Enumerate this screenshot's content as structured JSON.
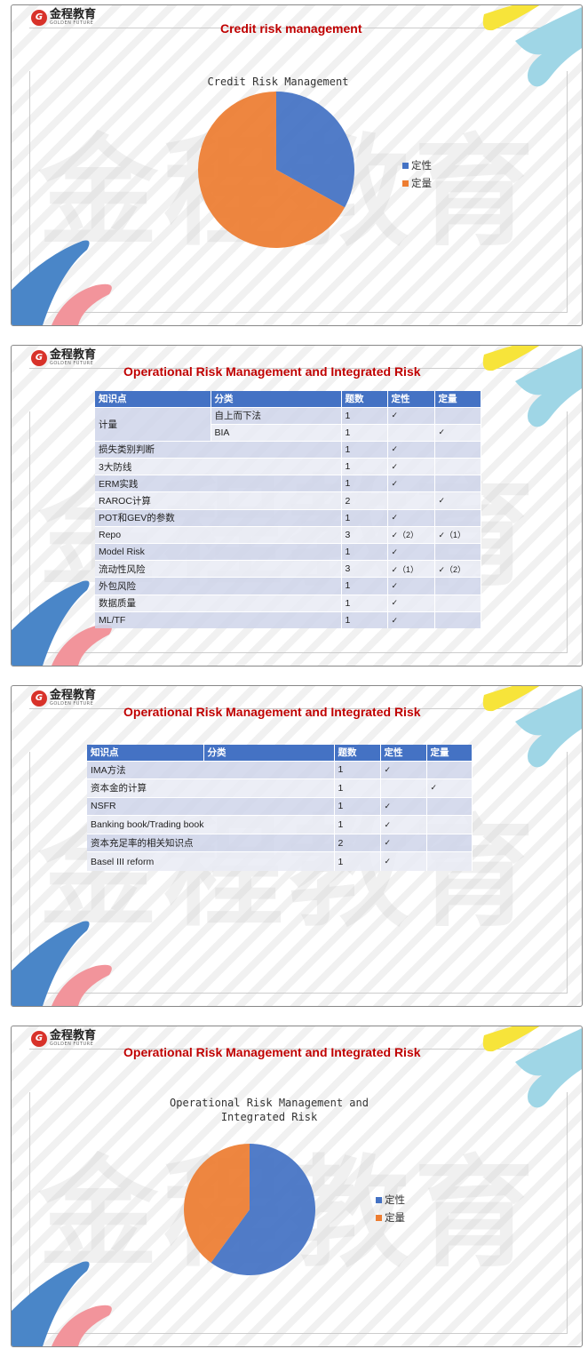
{
  "brand": {
    "logo_cn": "金程教育",
    "logo_en": "GOLDEN FUTURE",
    "watermark": "金程教育"
  },
  "colors": {
    "qualitative": "#4472c4",
    "quantitative": "#ed7d31",
    "title": "#c00000",
    "table_header": "#4472c4"
  },
  "slides": [
    {
      "title": "Credit risk management"
    },
    {
      "title": "Operational Risk Management and Integrated Risk"
    },
    {
      "title": "Operational Risk Management and Integrated Risk"
    },
    {
      "title": "Operational Risk Management and Integrated Risk"
    }
  ],
  "table1": {
    "headers": [
      "知识点",
      "分类",
      "题数",
      "定性",
      "定量"
    ],
    "rows": [
      {
        "topic": "计量",
        "category": "自上而下法",
        "count": "1",
        "qualitative": "✓",
        "quantitative": ""
      },
      {
        "topic": "",
        "category": "BIA",
        "count": "1",
        "qualitative": "",
        "quantitative": "✓"
      },
      {
        "topic": "损失类别判断",
        "category": "",
        "count": "1",
        "qualitative": "✓",
        "quantitative": ""
      },
      {
        "topic": "3大防线",
        "category": "",
        "count": "1",
        "qualitative": "✓",
        "quantitative": ""
      },
      {
        "topic": "ERM实践",
        "category": "",
        "count": "1",
        "qualitative": "✓",
        "quantitative": ""
      },
      {
        "topic": "RAROC计算",
        "category": "",
        "count": "2",
        "qualitative": "",
        "quantitative": "✓"
      },
      {
        "topic": "POT和GEV的参数",
        "category": "",
        "count": "1",
        "qualitative": "✓",
        "quantitative": ""
      },
      {
        "topic": "Repo",
        "category": "",
        "count": "3",
        "qualitative": "✓（2）",
        "quantitative": "✓（1）"
      },
      {
        "topic": "Model Risk",
        "category": "",
        "count": "1",
        "qualitative": "✓",
        "quantitative": ""
      },
      {
        "topic": "流动性风险",
        "category": "",
        "count": "3",
        "qualitative": "✓（1）",
        "quantitative": "✓（2）"
      },
      {
        "topic": "外包风险",
        "category": "",
        "count": "1",
        "qualitative": "✓",
        "quantitative": ""
      },
      {
        "topic": "数据质量",
        "category": "",
        "count": "1",
        "qualitative": "✓",
        "quantitative": ""
      },
      {
        "topic": "ML/TF",
        "category": "",
        "count": "1",
        "qualitative": "✓",
        "quantitative": ""
      }
    ]
  },
  "table2": {
    "headers": [
      "知识点",
      "分类",
      "题数",
      "定性",
      "定量"
    ],
    "rows": [
      {
        "topic": "IMA方法",
        "category": "",
        "count": "1",
        "qualitative": "✓",
        "quantitative": ""
      },
      {
        "topic": "资本金的计算",
        "category": "",
        "count": "1",
        "qualitative": "",
        "quantitative": "✓"
      },
      {
        "topic": "NSFR",
        "category": "",
        "count": "1",
        "qualitative": "✓",
        "quantitative": ""
      },
      {
        "topic": "Banking book/Trading book",
        "category": "",
        "count": "1",
        "qualitative": "✓",
        "quantitative": ""
      },
      {
        "topic": "资本充足率的相关知识点",
        "category": "",
        "count": "2",
        "qualitative": "✓",
        "quantitative": ""
      },
      {
        "topic": "Basel III reform",
        "category": "",
        "count": "1",
        "qualitative": "✓",
        "quantitative": ""
      }
    ]
  },
  "chart_data": [
    {
      "type": "pie",
      "title": "Credit Risk Management",
      "categories": [
        "定性",
        "定量"
      ],
      "values": [
        33,
        67
      ],
      "colors": [
        "#4472c4",
        "#ed7d31"
      ],
      "legend": "right"
    },
    {
      "type": "pie",
      "title": "Operational Risk Management and Integrated Risk",
      "categories": [
        "定性",
        "定量"
      ],
      "values": [
        60,
        40
      ],
      "colors": [
        "#4472c4",
        "#ed7d31"
      ],
      "legend": "right"
    }
  ]
}
